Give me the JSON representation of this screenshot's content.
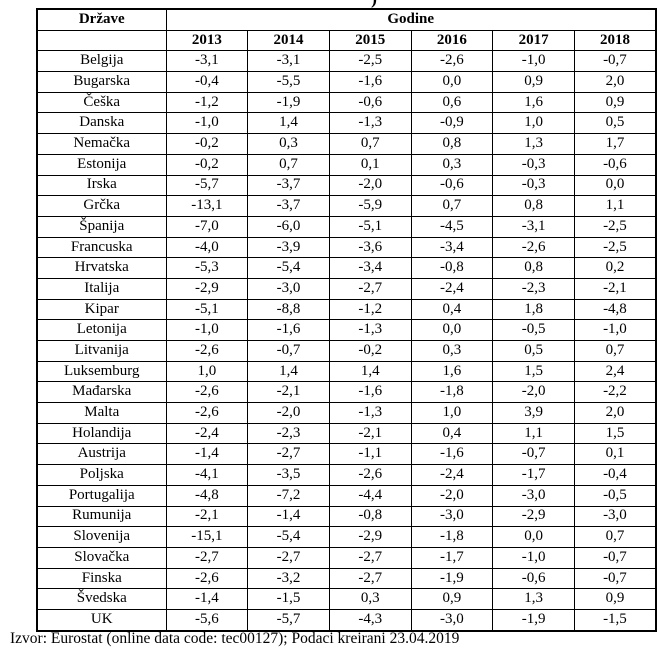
{
  "title_fragment": ")",
  "table": {
    "col1_header": "Države",
    "group_header": "Godine",
    "years": [
      "2013",
      "2014",
      "2015",
      "2016",
      "2017",
      "2018"
    ],
    "rows": [
      {
        "country": "Belgija",
        "values": [
          "-3,1",
          "-3,1",
          "-2,5",
          "-2,6",
          "-1,0",
          "-0,7"
        ]
      },
      {
        "country": "Bugarska",
        "values": [
          "-0,4",
          "-5,5",
          "-1,6",
          "0,0",
          "0,9",
          "2,0"
        ]
      },
      {
        "country": "Češka",
        "values": [
          "-1,2",
          "-1,9",
          "-0,6",
          "0,6",
          "1,6",
          "0,9"
        ]
      },
      {
        "country": "Danska",
        "values": [
          "-1,0",
          "1,4",
          "-1,3",
          "-0,9",
          "1,0",
          "0,5"
        ]
      },
      {
        "country": "Nemačka",
        "values": [
          "-0,2",
          "0,3",
          "0,7",
          "0,8",
          "1,3",
          "1,7"
        ]
      },
      {
        "country": "Estonija",
        "values": [
          "-0,2",
          "0,7",
          "0,1",
          "0,3",
          "-0,3",
          "-0,6"
        ]
      },
      {
        "country": "Irska",
        "values": [
          "-5,7",
          "-3,7",
          "-2,0",
          "-0,6",
          "-0,3",
          "0,0"
        ]
      },
      {
        "country": "Grčka",
        "values": [
          "-13,1",
          "-3,7",
          "-5,9",
          "0,7",
          "0,8",
          "1,1"
        ]
      },
      {
        "country": "Španija",
        "values": [
          "-7,0",
          "-6,0",
          "-5,1",
          "-4,5",
          "-3,1",
          "-2,5"
        ]
      },
      {
        "country": "Francuska",
        "values": [
          "-4,0",
          "-3,9",
          "-3,6",
          "-3,4",
          "-2,6",
          "-2,5"
        ]
      },
      {
        "country": "Hrvatska",
        "values": [
          "-5,3",
          "-5,4",
          "-3,4",
          "-0,8",
          "0,8",
          "0,2"
        ]
      },
      {
        "country": "Italija",
        "values": [
          "-2,9",
          "-3,0",
          "-2,7",
          "-2,4",
          "-2,3",
          "-2,1"
        ]
      },
      {
        "country": "Kipar",
        "values": [
          "-5,1",
          "-8,8",
          "-1,2",
          "0,4",
          "1,8",
          "-4,8"
        ]
      },
      {
        "country": "Letonija",
        "values": [
          "-1,0",
          "-1,6",
          "-1,3",
          "0,0",
          "-0,5",
          "-1,0"
        ]
      },
      {
        "country": "Litvanija",
        "values": [
          "-2,6",
          "-0,7",
          "-0,2",
          "0,3",
          "0,5",
          "0,7"
        ]
      },
      {
        "country": "Luksemburg",
        "values": [
          "1,0",
          "1,4",
          "1,4",
          "1,6",
          "1,5",
          "2,4"
        ]
      },
      {
        "country": "Mađarska",
        "values": [
          "-2,6",
          "-2,1",
          "-1,6",
          "-1,8",
          "-2,0",
          "-2,2"
        ]
      },
      {
        "country": "Malta",
        "values": [
          "-2,6",
          "-2,0",
          "-1,3",
          "1,0",
          "3,9",
          "2,0"
        ]
      },
      {
        "country": "Holandija",
        "values": [
          "-2,4",
          "-2,3",
          "-2,1",
          "0,4",
          "1,1",
          "1,5"
        ]
      },
      {
        "country": "Austrija",
        "values": [
          "-1,4",
          "-2,7",
          "-1,1",
          "-1,6",
          "-0,7",
          "0,1"
        ]
      },
      {
        "country": "Poljska",
        "values": [
          "-4,1",
          "-3,5",
          "-2,6",
          "-2,4",
          "-1,7",
          "-0,4"
        ]
      },
      {
        "country": "Portugalija",
        "values": [
          "-4,8",
          "-7,2",
          "-4,4",
          "-2,0",
          "-3,0",
          "-0,5"
        ]
      },
      {
        "country": "Rumunija",
        "values": [
          "-2,1",
          "-1,4",
          "-0,8",
          "-3,0",
          "-2,9",
          "-3,0"
        ]
      },
      {
        "country": "Slovenija",
        "values": [
          "-15,1",
          "-5,4",
          "-2,9",
          "-1,8",
          "0,0",
          "0,7"
        ]
      },
      {
        "country": "Slovačka",
        "values": [
          "-2,7",
          "-2,7",
          "-2,7",
          "-1,7",
          "-1,0",
          "-0,7"
        ]
      },
      {
        "country": "Finska",
        "values": [
          "-2,6",
          "-3,2",
          "-2,7",
          "-1,9",
          "-0,6",
          "-0,7"
        ]
      },
      {
        "country": "Švedska",
        "values": [
          "-1,4",
          "-1,5",
          "0,3",
          "0,9",
          "1,3",
          "0,9"
        ]
      },
      {
        "country": "UK",
        "values": [
          "-5,6",
          "-5,7",
          "-4,3",
          "-3,0",
          "-1,9",
          "-1,5"
        ]
      }
    ]
  },
  "footer": "Izvor: Eurostat (online data code: tec00127); Podaci kreirani 23.04.2019"
}
